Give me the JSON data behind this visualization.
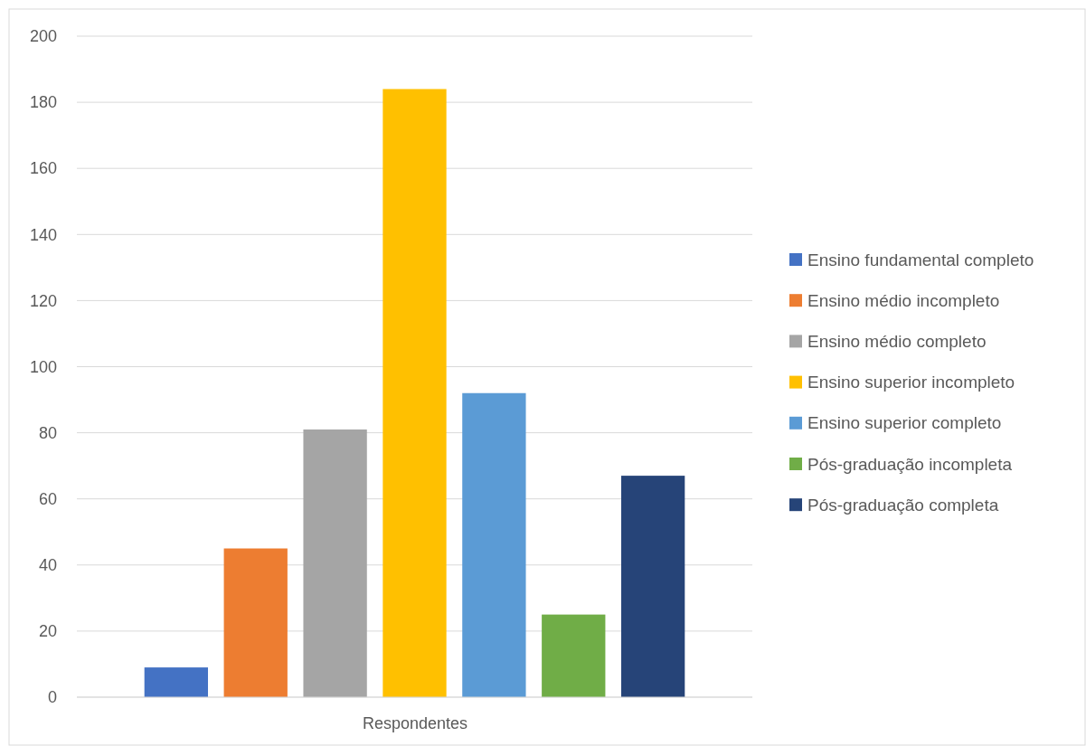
{
  "chart_data": {
    "type": "bar",
    "categories": [
      "Respondentes"
    ],
    "series": [
      {
        "name": "Ensino fundamental completo",
        "color": "#4472c4",
        "values": [
          9
        ]
      },
      {
        "name": "Ensino médio incompleto",
        "color": "#ed7d31",
        "values": [
          45
        ]
      },
      {
        "name": "Ensino médio completo",
        "color": "#a5a5a5",
        "values": [
          81
        ]
      },
      {
        "name": "Ensino superior incompleto",
        "color": "#ffc000",
        "values": [
          184
        ]
      },
      {
        "name": "Ensino superior completo",
        "color": "#5b9bd5",
        "values": [
          92
        ]
      },
      {
        "name": "Pós-graduação incompleta",
        "color": "#70ad47",
        "values": [
          25
        ]
      },
      {
        "name": "Pós-graduação completa",
        "color": "#264478",
        "values": [
          67
        ]
      }
    ],
    "ylim": [
      0,
      200
    ],
    "yticks": [
      0,
      20,
      40,
      60,
      80,
      100,
      120,
      140,
      160,
      180,
      200
    ],
    "grid": "y",
    "legend": "right"
  }
}
